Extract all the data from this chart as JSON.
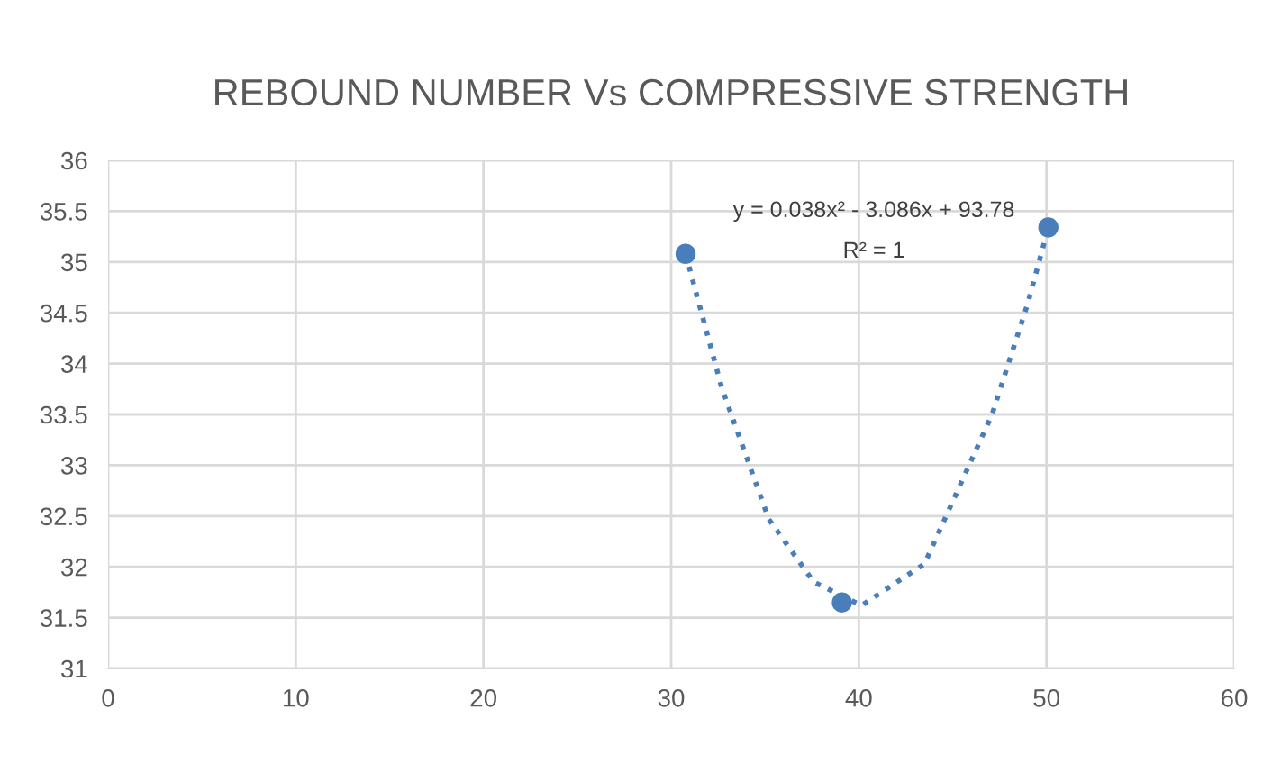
{
  "chart_data": {
    "type": "scatter",
    "title": "REBOUND NUMBER Vs COMPRESSIVE STRENGTH",
    "series": [
      {
        "color": "#4a7ebb",
        "x": [
          30.77,
          39.1,
          50.1
        ],
        "values": [
          35.08,
          31.65,
          35.34
        ],
        "marker": "circle"
      },
      {
        "type": "line",
        "color": "#4a7ebb",
        "x": [
          30.77,
          32.7,
          35.2,
          37.6,
          40.15,
          43.5,
          47.1,
          49.0,
          50.1
        ],
        "values": [
          35.08,
          33.76,
          32.47,
          31.85,
          31.62,
          32.03,
          33.5,
          34.59,
          35.34
        ],
        "line_style": "dotted",
        "marker": "none"
      }
    ],
    "annotations": [
      "y = 0.038x² - 3.086x + 93.78",
      "R² = 1"
    ],
    "xlim": [
      0,
      60
    ],
    "xticks": [
      0,
      10,
      20,
      30,
      40,
      50,
      60
    ],
    "ylim": [
      31,
      36
    ],
    "yticks": [
      31,
      31.5,
      32,
      32.5,
      33,
      33.5,
      34,
      34.5,
      35,
      35.5,
      36
    ],
    "grid": true
  }
}
